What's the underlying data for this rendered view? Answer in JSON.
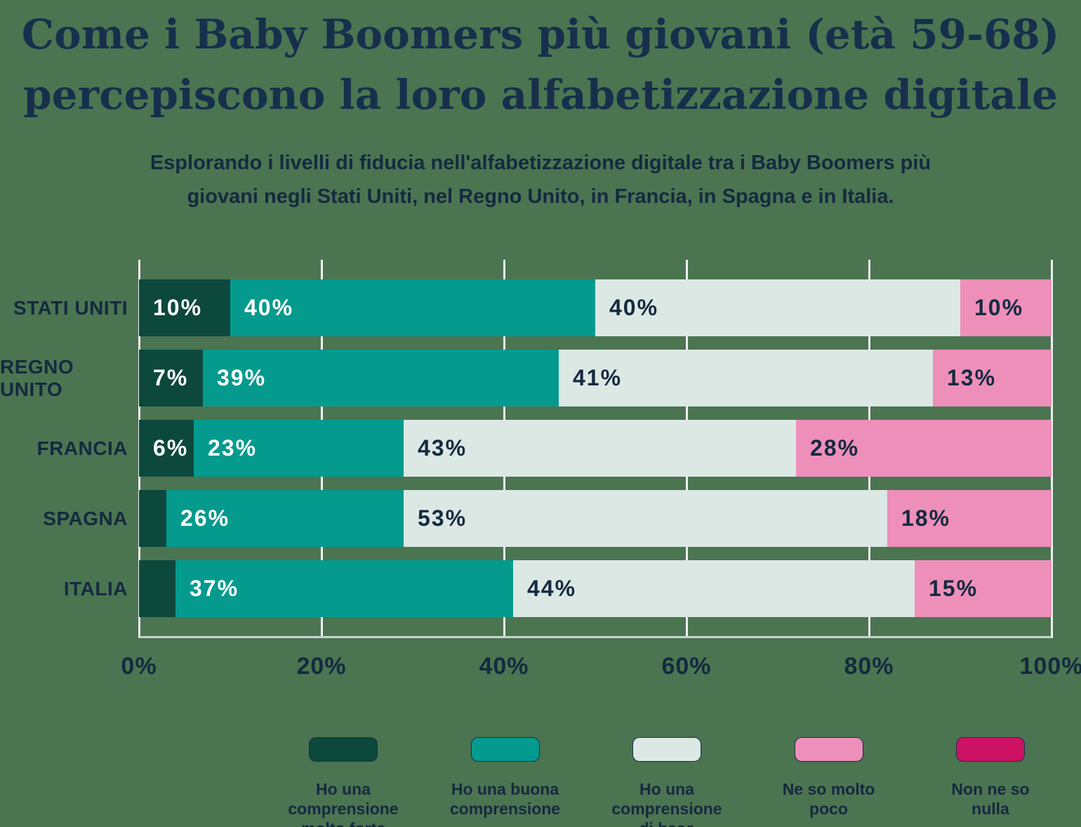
{
  "colors": {
    "background": "#4b7451",
    "title_text": "#16304c",
    "body_text": "#142a40",
    "gridline": "#eff1f0",
    "axis_line": "#c9d3cf",
    "swatch_border": "#17304a"
  },
  "header": {
    "title_line1": "Come i Baby Boomers più giovani (età 59-68)",
    "title_line2": "percepiscono la loro alfabetizzazione digitale",
    "subtitle_line1": "Esplorando i livelli di fiducia nell'alfabetizzazione digitale tra i Baby Boomers più",
    "subtitle_line2": "giovani negli Stati Uniti, nel Regno Unito, in Francia, in Spagna e in Italia."
  },
  "chart_data": {
    "type": "bar",
    "stacked": true,
    "orientation": "horizontal",
    "xlim": [
      0,
      100
    ],
    "x_ticks": [
      "0%",
      "20%",
      "40%",
      "60%",
      "80%",
      "100%"
    ],
    "grid": true,
    "legend_position": "bottom",
    "value_suffix": "%",
    "label_min_value": 5,
    "categories": [
      "STATI UNITI",
      "REGNO UNITO",
      "FRANCIA",
      "SPAGNA",
      "ITALIA"
    ],
    "series": [
      {
        "name": "Ho una comprensione molto forte",
        "legend_label": "Ho una comprensione\nmolto forte",
        "color": "#0d483d",
        "label_color": "#ffffff",
        "values": [
          10,
          7,
          6,
          3,
          4
        ]
      },
      {
        "name": "Ho una buona comprensione",
        "legend_label": "Ho una buona\ncomprensione",
        "color": "#059a8e",
        "label_color": "#ffffff",
        "values": [
          40,
          39,
          23,
          26,
          37
        ]
      },
      {
        "name": "Ho una comprensione di base",
        "legend_label": "Ho una comprensione\ndi base",
        "color": "#dce8e4",
        "label_color": "#142a40",
        "values": [
          40,
          41,
          43,
          53,
          44
        ]
      },
      {
        "name": "Ne so molto poco",
        "legend_label": "Ne so molto\npoco",
        "color": "#ee8fba",
        "label_color": "#142a40",
        "values": [
          10,
          13,
          28,
          18,
          15
        ]
      },
      {
        "name": "Non ne so nulla",
        "legend_label": "Non ne so\nnulla",
        "color": "#cd1264",
        "label_color": "#ffffff",
        "values": [
          0,
          0,
          0,
          0,
          0
        ]
      }
    ]
  }
}
